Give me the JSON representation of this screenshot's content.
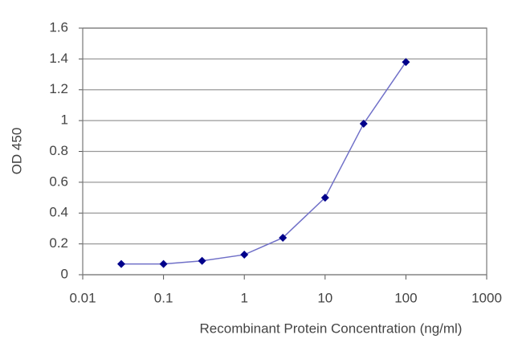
{
  "chart_data": {
    "type": "line",
    "xlabel": "Recombinant Protein Concentration (ng/ml)",
    "ylabel": "OD 450",
    "x": [
      0.03,
      0.1,
      0.3,
      1,
      3,
      10,
      30,
      100
    ],
    "series": [
      {
        "color": "#00008b",
        "line_color": "#7070c8",
        "values": [
          0.07,
          0.07,
          0.09,
          0.13,
          0.24,
          0.5,
          0.98,
          1.38
        ]
      }
    ],
    "xlog": true,
    "xlim": [
      0.01,
      1000
    ],
    "xticks": [
      0.01,
      0.1,
      1,
      10,
      100,
      1000
    ],
    "ylim": [
      0,
      1.6
    ],
    "yticks": [
      0,
      0.2,
      0.4,
      0.6,
      0.8,
      1,
      1.2,
      1.4,
      1.6
    ],
    "grid": true
  }
}
